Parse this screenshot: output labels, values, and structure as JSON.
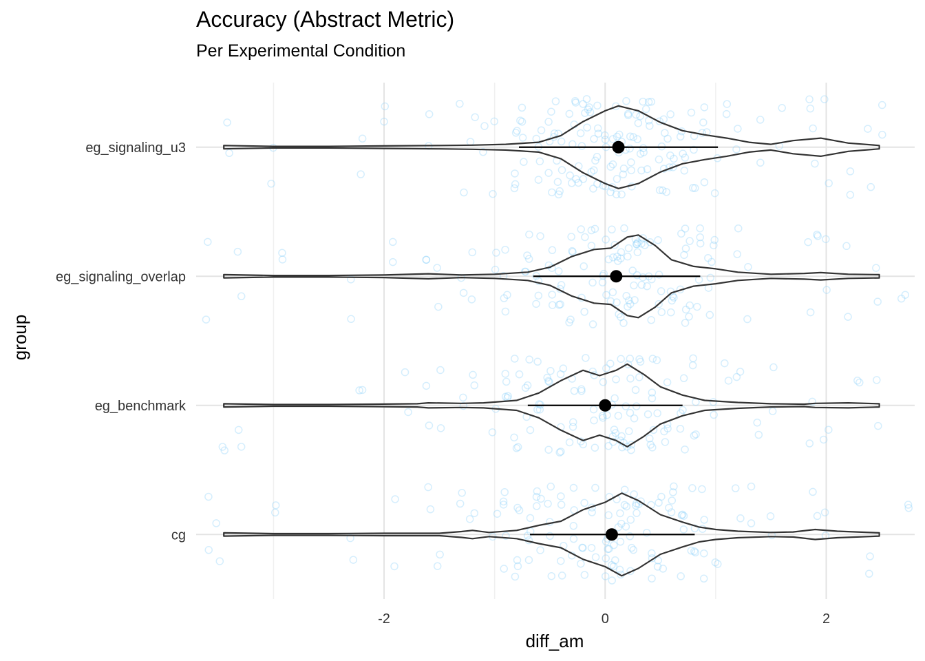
{
  "chart_data": {
    "type": "violin",
    "title": "Accuracy (Abstract Metric)",
    "subtitle": "Per Experimental Condition",
    "xlabel": "diff_am",
    "ylabel": "group",
    "xlim": [
      -3.7,
      2.8
    ],
    "x_ticks": [
      -2,
      0,
      2
    ],
    "x_tick_labels": [
      "-2",
      "0",
      "2"
    ],
    "grid": true,
    "legend": "none",
    "colors": {
      "points": "#87CEFA",
      "violin_outline": "#333333",
      "summary": "#000000",
      "grid_major": "#E3E3E3",
      "grid_minor": "#F0F0F0"
    },
    "categories": [
      "eg_signaling_u3",
      "eg_signaling_overlap",
      "eg_benchmark",
      "cg"
    ],
    "series": [
      {
        "group": "eg_signaling_u3",
        "mean": 0.12,
        "interval": [
          -0.78,
          1.02
        ],
        "density": [
          [
            -3.45,
            0.04
          ],
          [
            -3.0,
            0.02
          ],
          [
            -2.5,
            0.02
          ],
          [
            -2.0,
            0.03
          ],
          [
            -1.5,
            0.04
          ],
          [
            -1.2,
            0.05
          ],
          [
            -0.9,
            0.07
          ],
          [
            -0.6,
            0.12
          ],
          [
            -0.4,
            0.28
          ],
          [
            -0.2,
            0.62
          ],
          [
            0.0,
            0.88
          ],
          [
            0.12,
            1.0
          ],
          [
            0.3,
            0.88
          ],
          [
            0.5,
            0.6
          ],
          [
            0.7,
            0.4
          ],
          [
            0.9,
            0.3
          ],
          [
            1.1,
            0.22
          ],
          [
            1.3,
            0.12
          ],
          [
            1.5,
            0.07
          ],
          [
            1.7,
            0.16
          ],
          [
            1.95,
            0.22
          ],
          [
            2.2,
            0.1
          ],
          [
            2.48,
            0.04
          ]
        ],
        "points": [
          -3.4,
          -3.0,
          -2.2,
          -2.0,
          -1.6,
          -1.3,
          -1.2,
          -1.1,
          -1.0,
          -0.8,
          -0.75,
          -0.6,
          -0.5,
          -0.45,
          -0.4,
          -0.3,
          -0.25,
          -0.2,
          -0.15,
          -0.1,
          -0.05,
          0.0,
          0.05,
          0.1,
          0.15,
          0.2,
          0.25,
          0.3,
          0.35,
          0.4,
          0.5,
          0.55,
          0.6,
          0.7,
          0.8,
          0.9,
          1.0,
          1.1,
          1.2,
          1.4,
          1.6,
          1.85,
          1.9,
          2.0,
          2.2,
          2.4,
          2.5
        ]
      },
      {
        "group": "eg_signaling_overlap",
        "mean": 0.1,
        "interval": [
          -0.65,
          0.86
        ],
        "density": [
          [
            -3.45,
            0.04
          ],
          [
            -3.0,
            0.02
          ],
          [
            -2.5,
            0.02
          ],
          [
            -2.0,
            0.03
          ],
          [
            -1.6,
            0.06
          ],
          [
            -1.3,
            0.03
          ],
          [
            -1.0,
            0.05
          ],
          [
            -0.7,
            0.1
          ],
          [
            -0.5,
            0.22
          ],
          [
            -0.3,
            0.48
          ],
          [
            -0.1,
            0.65
          ],
          [
            0.05,
            0.68
          ],
          [
            0.2,
            0.95
          ],
          [
            0.3,
            1.0
          ],
          [
            0.45,
            0.75
          ],
          [
            0.6,
            0.4
          ],
          [
            0.8,
            0.24
          ],
          [
            1.0,
            0.18
          ],
          [
            1.2,
            0.1
          ],
          [
            1.5,
            0.05
          ],
          [
            1.8,
            0.07
          ],
          [
            1.95,
            0.09
          ],
          [
            2.2,
            0.05
          ],
          [
            2.48,
            0.04
          ]
        ],
        "points": [
          -3.6,
          -3.3,
          -2.9,
          -2.3,
          -1.9,
          -1.6,
          -1.5,
          -1.3,
          -1.2,
          -1.0,
          -0.9,
          -0.7,
          -0.6,
          -0.5,
          -0.4,
          -0.3,
          -0.2,
          -0.1,
          0.0,
          0.05,
          0.1,
          0.15,
          0.2,
          0.25,
          0.3,
          0.35,
          0.4,
          0.5,
          0.6,
          0.7,
          0.75,
          0.85,
          0.95,
          1.0,
          1.2,
          1.3,
          1.85,
          1.9,
          2.0,
          2.2,
          2.45,
          2.7
        ]
      },
      {
        "group": "eg_benchmark",
        "mean": 0.0,
        "interval": [
          -0.7,
          0.7
        ],
        "density": [
          [
            -3.45,
            0.04
          ],
          [
            -3.0,
            0.02
          ],
          [
            -2.5,
            0.02
          ],
          [
            -2.1,
            0.03
          ],
          [
            -1.7,
            0.04
          ],
          [
            -1.6,
            0.06
          ],
          [
            -1.3,
            0.05
          ],
          [
            -1.1,
            0.06
          ],
          [
            -0.8,
            0.12
          ],
          [
            -0.6,
            0.3
          ],
          [
            -0.4,
            0.6
          ],
          [
            -0.2,
            0.85
          ],
          [
            -0.05,
            0.72
          ],
          [
            0.1,
            0.85
          ],
          [
            0.2,
            1.0
          ],
          [
            0.35,
            0.75
          ],
          [
            0.5,
            0.45
          ],
          [
            0.7,
            0.25
          ],
          [
            0.9,
            0.12
          ],
          [
            1.2,
            0.07
          ],
          [
            1.5,
            0.04
          ],
          [
            1.8,
            0.03
          ],
          [
            1.9,
            0.05
          ],
          [
            2.2,
            0.06
          ],
          [
            2.48,
            0.04
          ]
        ],
        "points": [
          -3.45,
          -3.3,
          -2.2,
          -1.8,
          -1.6,
          -1.5,
          -1.3,
          -1.2,
          -1.0,
          -0.9,
          -0.8,
          -0.7,
          -0.6,
          -0.5,
          -0.4,
          -0.3,
          -0.2,
          -0.1,
          0.0,
          0.05,
          0.1,
          0.15,
          0.2,
          0.25,
          0.3,
          0.4,
          0.45,
          0.55,
          0.7,
          0.8,
          1.0,
          1.1,
          1.2,
          1.4,
          1.5,
          1.85,
          2.0,
          2.3,
          2.45
        ]
      },
      {
        "group": "cg",
        "mean": 0.06,
        "interval": [
          -0.68,
          0.81
        ],
        "density": [
          [
            -3.45,
            0.04
          ],
          [
            -3.0,
            0.02
          ],
          [
            -2.5,
            0.02
          ],
          [
            -2.0,
            0.03
          ],
          [
            -1.5,
            0.03
          ],
          [
            -1.3,
            0.07
          ],
          [
            -1.2,
            0.1
          ],
          [
            -1.05,
            0.05
          ],
          [
            -0.8,
            0.1
          ],
          [
            -0.6,
            0.22
          ],
          [
            -0.4,
            0.32
          ],
          [
            -0.2,
            0.6
          ],
          [
            0.0,
            0.78
          ],
          [
            0.15,
            1.0
          ],
          [
            0.3,
            0.82
          ],
          [
            0.5,
            0.48
          ],
          [
            0.7,
            0.3
          ],
          [
            0.85,
            0.18
          ],
          [
            1.0,
            0.12
          ],
          [
            1.2,
            0.08
          ],
          [
            1.5,
            0.05
          ],
          [
            1.7,
            0.06
          ],
          [
            1.9,
            0.12
          ],
          [
            2.1,
            0.08
          ],
          [
            2.48,
            0.04
          ]
        ],
        "points": [
          -3.6,
          -3.5,
          -3.0,
          -2.3,
          -1.9,
          -1.6,
          -1.5,
          -1.3,
          -1.2,
          -1.0,
          -0.9,
          -0.8,
          -0.7,
          -0.6,
          -0.5,
          -0.4,
          -0.3,
          -0.2,
          -0.1,
          0.0,
          0.05,
          0.1,
          0.15,
          0.2,
          0.25,
          0.3,
          0.4,
          0.5,
          0.6,
          0.7,
          0.8,
          0.9,
          1.0,
          1.2,
          1.3,
          1.5,
          1.9,
          2.0,
          2.4,
          2.75
        ]
      }
    ]
  }
}
